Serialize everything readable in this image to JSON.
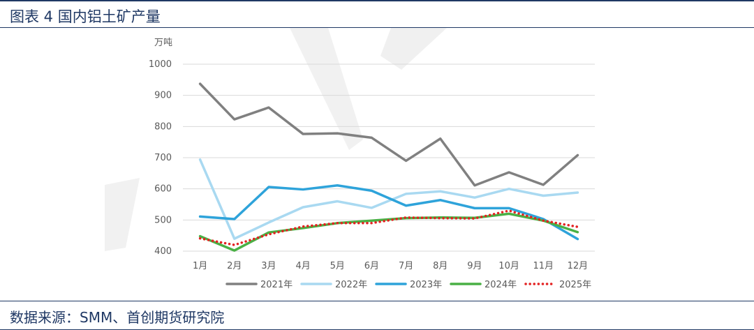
{
  "header": {
    "title": "图表 4 国内铝土矿产量"
  },
  "footer": {
    "source": "数据来源：SMM、首创期货研究院"
  },
  "chart_data": {
    "type": "line",
    "title": "",
    "xlabel": "",
    "ylabel": "万吨",
    "ylim": [
      400,
      1000
    ],
    "yticks": [
      400,
      500,
      600,
      700,
      800,
      900,
      1000
    ],
    "grid": true,
    "legend": "bottom",
    "categories": [
      "1月",
      "2月",
      "3月",
      "4月",
      "5月",
      "6月",
      "7月",
      "8月",
      "9月",
      "10月",
      "11月",
      "12月"
    ],
    "series": [
      {
        "name": "2021年",
        "color": "#808080",
        "dash": "solid",
        "values": [
          937,
          823,
          861,
          776,
          778,
          764,
          690,
          761,
          611,
          653,
          613,
          708
        ]
      },
      {
        "name": "2022年",
        "color": "#a9d9f1",
        "dash": "solid",
        "values": [
          694,
          440,
          492,
          541,
          560,
          539,
          584,
          592,
          572,
          600,
          578,
          588
        ]
      },
      {
        "name": "2023年",
        "color": "#2ea3da",
        "dash": "solid",
        "values": [
          511,
          503,
          606,
          598,
          611,
          594,
          546,
          564,
          538,
          538,
          503,
          439
        ]
      },
      {
        "name": "2024年",
        "color": "#4ab045",
        "dash": "solid",
        "values": [
          448,
          402,
          460,
          474,
          490,
          498,
          506,
          508,
          507,
          520,
          498,
          461
        ]
      },
      {
        "name": "2025年",
        "color": "#e32222",
        "dash": "dotted",
        "values": [
          441,
          420,
          454,
          479,
          490,
          490,
          508,
          506,
          505,
          530,
          498,
          478
        ]
      }
    ]
  }
}
